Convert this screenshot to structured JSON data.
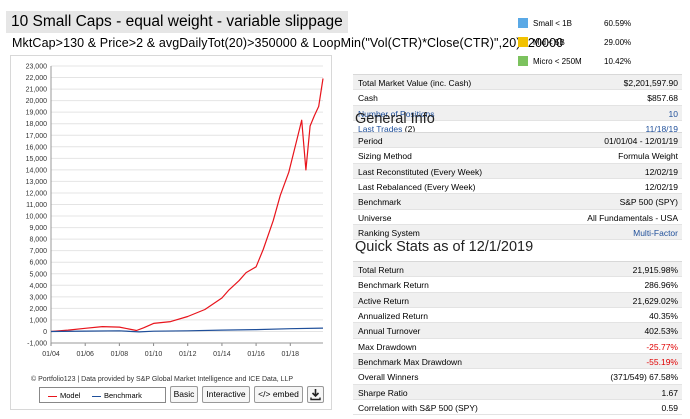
{
  "page": {
    "title": "10 Small Caps - equal weight - variable slippage",
    "formula": "MktCap>130  & Price>2  & avgDailyTot(20)>350000  & LoopMin(\"Vol(CTR)*Close(CTR)\",20)>20000"
  },
  "cap_legend": [
    {
      "label": "Small < 1B",
      "value": "60.59%",
      "color": "#5aa9e6"
    },
    {
      "label": "Mid < 5B",
      "value": "29.00%",
      "color": "#f2c200"
    },
    {
      "label": "Micro < 250M",
      "value": "10.42%",
      "color": "#7cc25e"
    }
  ],
  "chart_data": {
    "type": "line",
    "x_tick_labels": [
      "01/04",
      "01/06",
      "01/08",
      "01/10",
      "01/12",
      "01/14",
      "01/16",
      "01/18"
    ],
    "y_tick_labels": [
      "-1,000",
      "0",
      "1,000",
      "2,000",
      "3,000",
      "4,000",
      "5,000",
      "6,000",
      "7,000",
      "8,000",
      "9,000",
      "10,000",
      "11,000",
      "12,000",
      "13,000",
      "14,000",
      "15,000",
      "16,000",
      "17,000",
      "18,000",
      "19,000",
      "20,000",
      "21,000",
      "22,000",
      "23,000"
    ],
    "ylim": [
      -1000,
      23000
    ],
    "xlim": [
      "2004-01-01",
      "2019-12-01"
    ],
    "grid": true,
    "series": [
      {
        "name": "Model",
        "color": "#e8141c",
        "x": [
          "2004-01",
          "2005-01",
          "2006-01",
          "2007-01",
          "2008-01",
          "2009-01",
          "2009-06",
          "2010-01",
          "2011-01",
          "2012-01",
          "2013-01",
          "2014-01",
          "2014-06",
          "2015-01",
          "2015-06",
          "2016-01",
          "2016-06",
          "2017-01",
          "2017-06",
          "2017-12",
          "2018-06",
          "2018-09",
          "2018-12",
          "2019-03",
          "2019-06",
          "2019-09",
          "2019-12"
        ],
        "values": [
          0,
          120,
          270,
          420,
          380,
          80,
          320,
          700,
          850,
          1300,
          1900,
          2900,
          3600,
          4400,
          5100,
          5600,
          7100,
          9600,
          11800,
          13800,
          16800,
          18300,
          14000,
          17800,
          18700,
          19500,
          21916
        ]
      },
      {
        "name": "Benchmark",
        "color": "#1f4f9a",
        "x": [
          "2004-01",
          "2006-01",
          "2008-01",
          "2009-03",
          "2010-01",
          "2012-01",
          "2014-01",
          "2016-01",
          "2018-01",
          "2019-12"
        ],
        "values": [
          0,
          30,
          60,
          -40,
          20,
          60,
          120,
          160,
          240,
          287
        ]
      }
    ]
  },
  "chart_footer": {
    "note": "© Portfolio123 | Data provided by S&P Global Market Intelligence and ICE Data, LLP",
    "legend_model": "Model",
    "legend_benchmark": "Benchmark",
    "btn_basic": "Basic",
    "btn_interactive": "Interactive",
    "btn_embed": "</> embed",
    "download_icon": "download-icon"
  },
  "summary": [
    {
      "label": "Total Market Value (inc. Cash)",
      "value": "$2,201,597.90"
    },
    {
      "label": "Cash",
      "value": "$857.68"
    },
    {
      "label": "Number of Positions",
      "value": "10"
    },
    {
      "label": "Last Trades",
      "label_suffix": "(2)",
      "value": "11/18/19"
    }
  ],
  "general_info": {
    "heading": "General Info",
    "rows": [
      {
        "label": "Period",
        "value": "01/01/04 - 12/01/19"
      },
      {
        "label": "Sizing Method",
        "value": "Formula Weight"
      },
      {
        "label": "Last Reconstituted (Every Week)",
        "value": "12/02/19"
      },
      {
        "label": "Last Rebalanced (Every Week)",
        "value": "12/02/19"
      },
      {
        "label": "Benchmark",
        "value": "S&P 500 (SPY)"
      },
      {
        "label": "Universe",
        "value": "All Fundamentals - USA"
      },
      {
        "label": "Ranking System",
        "value": "Multi-Factor"
      }
    ]
  },
  "quick_stats": {
    "heading": "Quick Stats as of 12/1/2019",
    "rows": [
      {
        "label": "Total Return",
        "value": "21,915.98%"
      },
      {
        "label": "Benchmark Return",
        "value": "286.96%"
      },
      {
        "label": "Active Return",
        "value": "21,629.02%"
      },
      {
        "label": "Annualized Return",
        "value": "40.35%"
      },
      {
        "label": "Annual Turnover",
        "value": "402.53%"
      },
      {
        "label": "Max Drawdown",
        "value": "-25.77%"
      },
      {
        "label": "Benchmark Max Drawdown",
        "value": "-55.19%"
      },
      {
        "label": "Overall Winners",
        "value": "(371/549) 67.58%"
      },
      {
        "label": "Sharpe Ratio",
        "value": "1.67"
      },
      {
        "label": "Correlation with S&P 500 (SPY)",
        "value": "0.59"
      }
    ]
  }
}
